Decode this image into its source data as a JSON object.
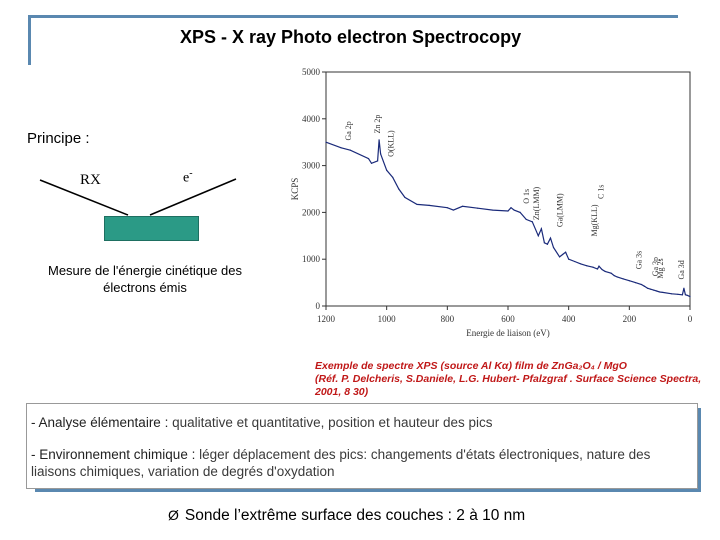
{
  "title": "XPS - X ray Photo electron Spectrocopy",
  "principle": {
    "heading": "Principe :",
    "rx": "RX",
    "electron": "e",
    "electron_sup": "-",
    "measure_text": "Mesure de l'énergie cinétique des électrons émis"
  },
  "chart_data": {
    "type": "line",
    "xlabel": "Energie de liaison (eV)",
    "ylabel": "KCPS",
    "xlim": [
      1200,
      0
    ],
    "ylim": [
      0,
      5000
    ],
    "x_ticks": [
      "1200",
      "1000",
      "800",
      "600",
      "400",
      "200",
      "0"
    ],
    "y_ticks": [
      "0",
      "1000",
      "2000",
      "3000",
      "4000",
      "5000"
    ],
    "peak_labels": [
      "Zn 2p",
      "Ga 2p",
      "O(KLL)",
      "C 1s",
      "Zn(LMM)",
      "Ga(LMM)",
      "Mg(KLL)",
      "O 1s",
      "Ga 3s",
      "Ga 3p",
      "Mg 2s",
      "Ga 3d"
    ],
    "series": [
      {
        "x": [
          1200,
          1150,
          1120,
          1060,
          1050,
          1030,
          1025,
          1020,
          1000,
          980,
          960,
          940,
          900,
          860,
          800,
          780,
          750,
          700,
          650,
          600,
          590,
          580,
          560,
          540,
          520,
          500,
          490,
          480,
          470,
          460,
          450,
          430,
          420,
          410,
          400,
          380,
          360,
          340,
          320,
          305,
          300,
          290,
          280,
          260,
          250,
          240,
          220,
          200,
          180,
          160,
          150,
          140,
          130,
          120,
          110,
          100,
          90,
          60,
          40,
          25,
          20,
          15,
          10,
          0
        ],
        "y": [
          3500,
          3380,
          3330,
          3150,
          3050,
          3100,
          3550,
          3250,
          2900,
          2750,
          2500,
          2320,
          2170,
          2150,
          2100,
          2050,
          2130,
          2090,
          2050,
          2030,
          2100,
          2050,
          2000,
          1850,
          1800,
          1500,
          1650,
          1350,
          1320,
          1450,
          1250,
          1050,
          1100,
          1150,
          1000,
          950,
          900,
          860,
          830,
          790,
          850,
          780,
          740,
          700,
          650,
          620,
          580,
          540,
          500,
          460,
          420,
          380,
          360,
          340,
          320,
          300,
          290,
          260,
          250,
          240,
          380,
          240,
          230,
          200
        ]
      }
    ]
  },
  "caption": {
    "line1": "Exemple de spectre XPS (source Al Kα)   film de ZnGa₂O₄ / MgO",
    "line2": "(Réf. P. Delcheris, S.Daniele, L.G. Hubert- Pfalzgraf . Surface Science Spectra, 2001, 8  30)"
  },
  "notes": {
    "item1_lead": "-  Analyse élémentaire :",
    "item1_text": " qualitative et quantitative, position et hauteur des pics",
    "item2_lead": "-  Environnement chimique :",
    "item2_text": " léger déplacement des pics: changements d'états électroniques, nature des liaisons chimiques, variation de degrés d'oxydation"
  },
  "conclusion": {
    "arrow": "Ø",
    "text": "Sonde l’extrême surface des couches : 2 à 10 nm"
  }
}
